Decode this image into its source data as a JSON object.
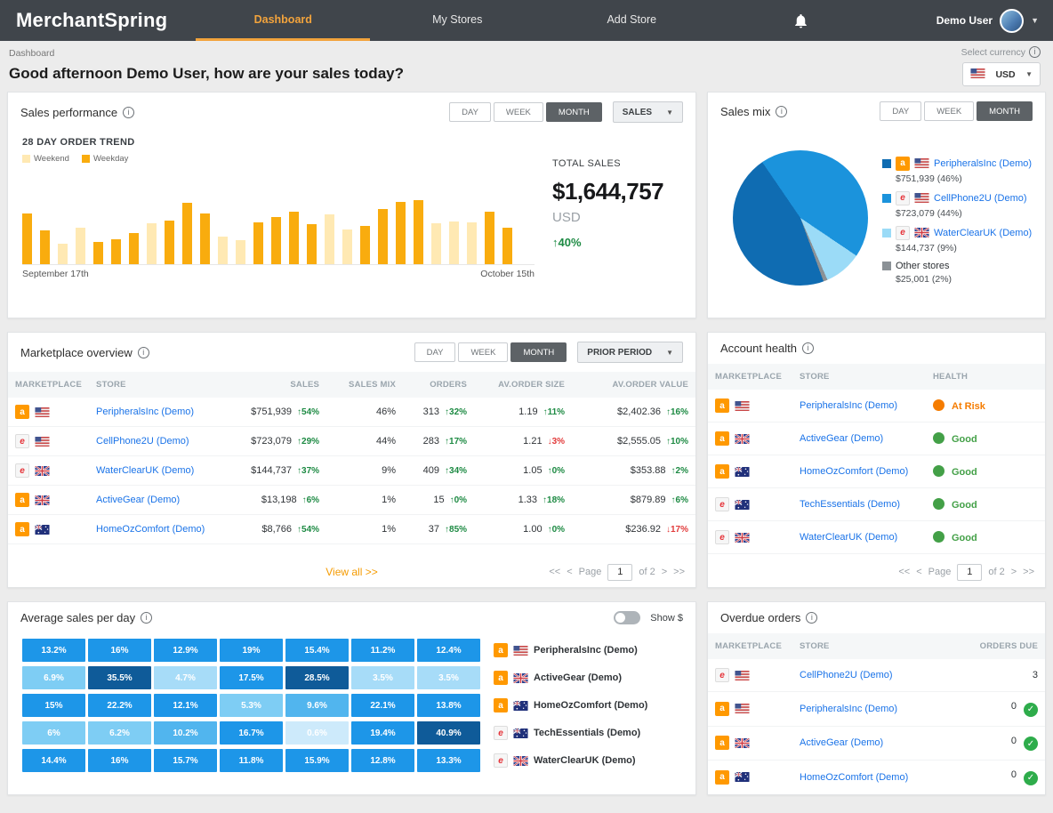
{
  "theme": {
    "nav_bg": "#40454b",
    "accent": "#f2a33c",
    "weekday_bar": "#f9ac0e",
    "weekend_bar": "#ffe9b3",
    "green": "#1d8a43",
    "red": "#e23b3b",
    "link_blue": "#1a73e8",
    "risk_orange": "#f57c00",
    "good_green": "#43a047"
  },
  "nav": {
    "logo": "MerchantSpring",
    "items": [
      {
        "label": "Dashboard",
        "active": true
      },
      {
        "label": "My Stores",
        "active": false
      },
      {
        "label": "Add Store",
        "active": false
      }
    ],
    "user": "Demo User"
  },
  "header": {
    "breadcrumb": "Dashboard",
    "greeting": "Good afternoon Demo User, how are your sales today?",
    "currency_label": "Select currency",
    "currency": "USD"
  },
  "sales_performance": {
    "title": "Sales performance",
    "periods": {
      "options": [
        "DAY",
        "WEEK",
        "MONTH"
      ],
      "active": "MONTH"
    },
    "metric_dropdown": "SALES",
    "chart_title": "28 DAY ORDER TREND",
    "legend": [
      {
        "label": "Weekend",
        "color": "#ffe9b3"
      },
      {
        "label": "Weekday",
        "color": "#f9ac0e"
      }
    ],
    "x_axis_start": "September 17th",
    "x_axis_end": "October 15th",
    "total_label": "TOTAL SALES",
    "total_value": "$1,644,757",
    "total_currency": "USD",
    "total_change": "↑40%",
    "chart_data": {
      "type": "bar",
      "bars": [
        {
          "v": 55,
          "weekend": false
        },
        {
          "v": 37,
          "weekend": false
        },
        {
          "v": 22,
          "weekend": true
        },
        {
          "v": 40,
          "weekend": true
        },
        {
          "v": 24,
          "weekend": false
        },
        {
          "v": 27,
          "weekend": false
        },
        {
          "v": 34,
          "weekend": false
        },
        {
          "v": 45,
          "weekend": true
        },
        {
          "v": 48,
          "weekend": false
        },
        {
          "v": 67,
          "weekend": false
        },
        {
          "v": 55,
          "weekend": false
        },
        {
          "v": 30,
          "weekend": true
        },
        {
          "v": 26,
          "weekend": true
        },
        {
          "v": 46,
          "weekend": false
        },
        {
          "v": 51,
          "weekend": false
        },
        {
          "v": 57,
          "weekend": false
        },
        {
          "v": 44,
          "weekend": false
        },
        {
          "v": 54,
          "weekend": true
        },
        {
          "v": 38,
          "weekend": true
        },
        {
          "v": 42,
          "weekend": false
        },
        {
          "v": 60,
          "weekend": false
        },
        {
          "v": 68,
          "weekend": false
        },
        {
          "v": 70,
          "weekend": false
        },
        {
          "v": 45,
          "weekend": true
        },
        {
          "v": 47,
          "weekend": true
        },
        {
          "v": 46,
          "weekend": true
        },
        {
          "v": 57,
          "weekend": false
        },
        {
          "v": 40,
          "weekend": false
        }
      ]
    }
  },
  "sales_mix": {
    "title": "Sales mix",
    "periods": {
      "options": [
        "DAY",
        "WEEK",
        "MONTH"
      ],
      "active": "MONTH"
    },
    "chart_data": {
      "type": "pie",
      "slices": [
        {
          "store": "PeripheralsInc (Demo)",
          "marketplace": "amazon",
          "flag": "us",
          "value": "$751,939",
          "pct": "46%",
          "pct_num": 46,
          "color": "#0f6cb2"
        },
        {
          "store": "CellPhone2U (Demo)",
          "marketplace": "ebay",
          "flag": "us",
          "value": "$723,079",
          "pct": "44%",
          "pct_num": 44,
          "color": "#1b93dc"
        },
        {
          "store": "WaterClearUK (Demo)",
          "marketplace": "ebay",
          "flag": "uk",
          "value": "$144,737",
          "pct": "9%",
          "pct_num": 9,
          "color": "#9bdbf7"
        },
        {
          "store": "Other stores",
          "marketplace": null,
          "flag": null,
          "value": "$25,001",
          "pct": "2%",
          "pct_num": 2,
          "color": "#8b9196"
        }
      ]
    }
  },
  "marketplace_overview": {
    "title": "Marketplace overview",
    "periods": {
      "options": [
        "DAY",
        "WEEK",
        "MONTH"
      ],
      "active": "MONTH"
    },
    "prior_period_dropdown": "PRIOR PERIOD",
    "columns": [
      "MARKETPLACE",
      "STORE",
      "SALES",
      "SALES MIX",
      "ORDERS",
      "AV.ORDER SIZE",
      "AV.ORDER VALUE"
    ],
    "rows": [
      {
        "marketplace": "amazon",
        "flag": "us",
        "store": "PeripheralsInc (Demo)",
        "sales": "$751,939",
        "sales_change": "↑54%",
        "sales_mix": "46%",
        "orders": "313",
        "orders_change": "↑32%",
        "av_order_size": "1.19",
        "av_order_size_change": "↑11%",
        "av_order_value": "$2,402.36",
        "av_order_value_change": "↑16%"
      },
      {
        "marketplace": "ebay",
        "flag": "us",
        "store": "CellPhone2U (Demo)",
        "sales": "$723,079",
        "sales_change": "↑29%",
        "sales_mix": "44%",
        "orders": "283",
        "orders_change": "↑17%",
        "av_order_size": "1.21",
        "av_order_size_change": "↓3%",
        "av_order_value": "$2,555.05",
        "av_order_value_change": "↑10%"
      },
      {
        "marketplace": "ebay",
        "flag": "uk",
        "store": "WaterClearUK (Demo)",
        "sales": "$144,737",
        "sales_change": "↑37%",
        "sales_mix": "9%",
        "orders": "409",
        "orders_change": "↑34%",
        "av_order_size": "1.05",
        "av_order_size_change": "↑0%",
        "av_order_value": "$353.88",
        "av_order_value_change": "↑2%"
      },
      {
        "marketplace": "amazon",
        "flag": "uk",
        "store": "ActiveGear (Demo)",
        "sales": "$13,198",
        "sales_change": "↑6%",
        "sales_mix": "1%",
        "orders": "15",
        "orders_change": "↑0%",
        "av_order_size": "1.33",
        "av_order_size_change": "↑18%",
        "av_order_value": "$879.89",
        "av_order_value_change": "↑6%"
      },
      {
        "marketplace": "amazon",
        "flag": "au",
        "store": "HomeOzComfort (Demo)",
        "sales": "$8,766",
        "sales_change": "↑54%",
        "sales_mix": "1%",
        "orders": "37",
        "orders_change": "↑85%",
        "av_order_size": "1.00",
        "av_order_size_change": "↑0%",
        "av_order_value": "$236.92",
        "av_order_value_change": "↓17%"
      }
    ],
    "view_all": "View all >>",
    "pagination": {
      "first": "<<",
      "prev": "<",
      "label": "Page",
      "page": "1",
      "of": "of 2",
      "next": ">",
      "last": ">>"
    }
  },
  "account_health": {
    "title": "Account health",
    "columns": [
      "MARKETPLACE",
      "STORE",
      "HEALTH"
    ],
    "rows": [
      {
        "marketplace": "amazon",
        "flag": "us",
        "store": "PeripheralsInc (Demo)",
        "health": "At Risk",
        "status": "risk"
      },
      {
        "marketplace": "amazon",
        "flag": "uk",
        "store": "ActiveGear (Demo)",
        "health": "Good",
        "status": "good"
      },
      {
        "marketplace": "amazon",
        "flag": "au",
        "store": "HomeOzComfort (Demo)",
        "health": "Good",
        "status": "good"
      },
      {
        "marketplace": "ebay",
        "flag": "au",
        "store": "TechEssentials (Demo)",
        "health": "Good",
        "status": "good"
      },
      {
        "marketplace": "ebay",
        "flag": "uk",
        "store": "WaterClearUK (Demo)",
        "health": "Good",
        "status": "good"
      }
    ],
    "pagination": {
      "first": "<<",
      "prev": "<",
      "label": "Page",
      "page": "1",
      "of": "of 2",
      "next": ">",
      "last": ">>"
    }
  },
  "average_sales": {
    "title": "Average sales per day",
    "toggle_label": "Show $",
    "chart_data": {
      "type": "heatmap",
      "rows": [
        {
          "store": "PeripheralsInc (Demo)",
          "marketplace": "amazon",
          "flag": "us",
          "values": [
            "13.2%",
            "16%",
            "12.9%",
            "19%",
            "15.4%",
            "11.2%",
            "12.4%"
          ]
        },
        {
          "store": "ActiveGear (Demo)",
          "marketplace": "amazon",
          "flag": "uk",
          "values": [
            "6.9%",
            "35.5%",
            "4.7%",
            "17.5%",
            "28.5%",
            "3.5%",
            "3.5%"
          ]
        },
        {
          "store": "HomeOzComfort (Demo)",
          "marketplace": "amazon",
          "flag": "au",
          "values": [
            "15%",
            "22.2%",
            "12.1%",
            "5.3%",
            "9.6%",
            "22.1%",
            "13.8%"
          ]
        },
        {
          "store": "TechEssentials (Demo)",
          "marketplace": "ebay",
          "flag": "au",
          "values": [
            "6%",
            "6.2%",
            "10.2%",
            "16.7%",
            "0.6%",
            "19.4%",
            "40.9%"
          ]
        },
        {
          "store": "WaterClearUK (Demo)",
          "marketplace": "ebay",
          "flag": "uk",
          "values": [
            "14.4%",
            "16%",
            "15.7%",
            "11.8%",
            "15.9%",
            "12.8%",
            "13.3%"
          ]
        }
      ]
    }
  },
  "overdue_orders": {
    "title": "Overdue orders",
    "columns": [
      "MARKETPLACE",
      "STORE",
      "ORDERS DUE"
    ],
    "rows": [
      {
        "marketplace": "ebay",
        "flag": "us",
        "store": "CellPhone2U (Demo)",
        "due": "3",
        "ok": false
      },
      {
        "marketplace": "amazon",
        "flag": "us",
        "store": "PeripheralsInc (Demo)",
        "due": "0",
        "ok": true
      },
      {
        "marketplace": "amazon",
        "flag": "uk",
        "store": "ActiveGear (Demo)",
        "due": "0",
        "ok": true
      },
      {
        "marketplace": "amazon",
        "flag": "au",
        "store": "HomeOzComfort (Demo)",
        "due": "0",
        "ok": true
      }
    ]
  }
}
